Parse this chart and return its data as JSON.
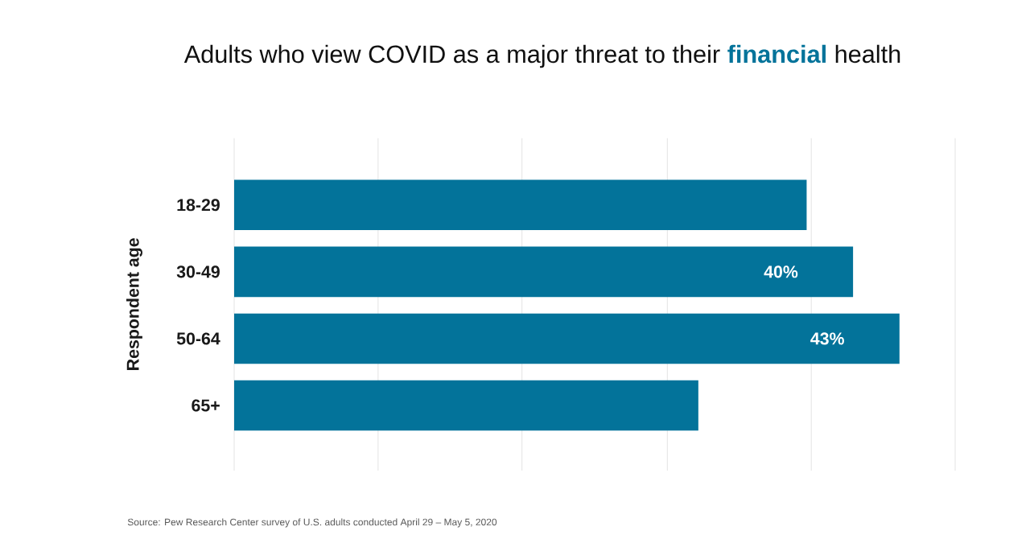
{
  "chart_data": {
    "type": "bar",
    "orientation": "horizontal",
    "title": "Adults who view COVID as a major threat to their **financial** health",
    "ylabel": "Respondent age",
    "categories": [
      "18-29",
      "30-49",
      "50-64",
      "65+"
    ],
    "values": [
      37,
      40,
      43,
      30
    ],
    "value_labels": [
      null,
      "40%",
      "43%",
      null
    ],
    "color": "#03739a",
    "xlim": [
      0,
      46.6
    ],
    "xticks": [
      {
        "value": 0,
        "label": null
      },
      {
        "value": 9.3,
        "label": null
      },
      {
        "value": 18.6,
        "label": null
      },
      {
        "value": 28,
        "label": null
      },
      {
        "value": 37.3,
        "label": null
      },
      {
        "value": 46.6,
        "label": null
      }
    ],
    "grid": "x",
    "tick_labels": "y",
    "annotations": [
      "Source: Pew Research Center survey of U.S. adults conducted April 29 – May 5, 2020"
    ]
  }
}
